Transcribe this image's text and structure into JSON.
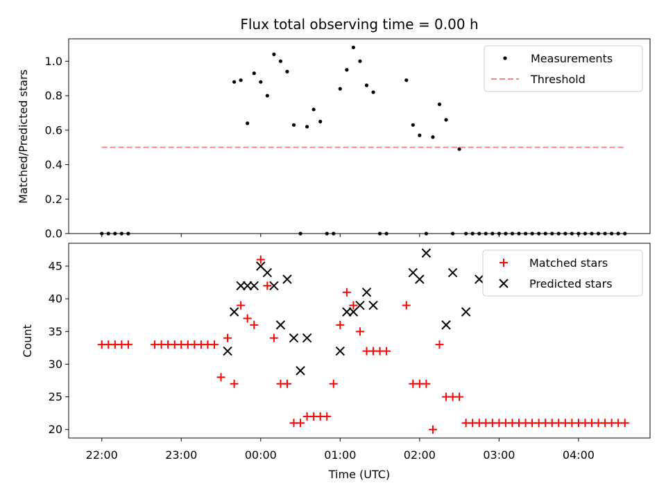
{
  "chart_data": [
    {
      "type": "scatter",
      "title": "Flux total observing time = 0.00 h",
      "xlabel": "",
      "ylabel": "Matched/Predicted stars",
      "xlim": [
        "21:35",
        "04:54"
      ],
      "ylim": [
        0,
        1.13
      ],
      "yticks": [
        0.0,
        0.2,
        0.4,
        0.6,
        0.8,
        1.0
      ],
      "ytick_labels": [
        "0.0",
        "0.2",
        "0.4",
        "0.6",
        "0.8",
        "1.0"
      ],
      "legend_position": "top-right",
      "legend": [
        "Measurements",
        "Threshold"
      ],
      "series": [
        {
          "name": "Measurements",
          "marker": "dot",
          "color": "#000000",
          "x": [
            "22:00",
            "22:05",
            "22:10",
            "22:15",
            "22:20",
            "23:40",
            "23:45",
            "23:50",
            "23:55",
            "00:00",
            "00:05",
            "00:10",
            "00:15",
            "00:20",
            "00:25",
            "00:30",
            "00:35",
            "00:40",
            "00:45",
            "00:50",
            "00:55",
            "01:00",
            "01:05",
            "01:10",
            "01:15",
            "01:20",
            "01:25",
            "01:30",
            "01:35",
            "01:50",
            "01:55",
            "02:00",
            "02:05",
            "02:10",
            "02:15",
            "02:20",
            "02:25",
            "02:30",
            "02:35",
            "02:40",
            "02:45",
            "02:50",
            "02:55",
            "03:00",
            "03:05",
            "03:10",
            "03:15",
            "03:20",
            "03:25",
            "03:30",
            "03:35",
            "03:40",
            "03:45",
            "03:50",
            "03:55",
            "04:00",
            "04:05",
            "04:10",
            "04:15",
            "04:20",
            "04:25",
            "04:30",
            "04:35"
          ],
          "y": [
            0,
            0,
            0,
            0,
            0,
            0.88,
            0.89,
            0.64,
            0.93,
            0.88,
            0.8,
            1.04,
            1.0,
            0.94,
            0.63,
            0.0,
            0.62,
            0.72,
            0.65,
            0.0,
            0.0,
            0.84,
            0.95,
            1.08,
            1.0,
            0.86,
            0.82,
            0.0,
            0.0,
            0.89,
            0.63,
            0.57,
            0.0,
            0.56,
            0.75,
            0.66,
            0.0,
            0.49,
            0.0,
            0.0,
            0.0,
            0.0,
            0.0,
            0.0,
            0.0,
            0.0,
            0.0,
            0.0,
            0.0,
            0.0,
            0.0,
            0.0,
            0.0,
            0.0,
            0.0,
            0.0,
            0.0,
            0.0,
            0.0,
            0.0,
            0.0,
            0.0,
            0.0
          ]
        },
        {
          "name": "Threshold",
          "marker": "dashed-line",
          "color": "#ff8080",
          "x": [
            "22:00",
            "04:35"
          ],
          "y": [
            0.5,
            0.5
          ]
        }
      ]
    },
    {
      "type": "scatter",
      "title": "",
      "xlabel": "Time (UTC)",
      "ylabel": "Count",
      "xlim": [
        "21:35",
        "04:54"
      ],
      "ylim": [
        18.7,
        48.5
      ],
      "yticks": [
        20,
        25,
        30,
        35,
        40,
        45
      ],
      "ytick_labels": [
        "20",
        "25",
        "30",
        "35",
        "40",
        "45"
      ],
      "xticks": [
        "22:00",
        "23:00",
        "00:00",
        "01:00",
        "02:00",
        "03:00",
        "04:00"
      ],
      "xtick_labels": [
        "22:00",
        "23:00",
        "00:00",
        "01:00",
        "02:00",
        "03:00",
        "04:00"
      ],
      "legend_position": "top-right",
      "legend": [
        "Matched stars",
        "Predicted stars"
      ],
      "series": [
        {
          "name": "Matched stars",
          "marker": "plus",
          "color": "#ff0000",
          "x": [
            "22:00",
            "22:05",
            "22:10",
            "22:15",
            "22:20",
            "22:40",
            "22:45",
            "22:50",
            "22:55",
            "23:00",
            "23:05",
            "23:10",
            "23:15",
            "23:20",
            "23:25",
            "23:30",
            "23:35",
            "23:40",
            "23:45",
            "23:50",
            "23:55",
            "00:00",
            "00:05",
            "00:10",
            "00:15",
            "00:20",
            "00:25",
            "00:30",
            "00:35",
            "00:40",
            "00:45",
            "00:50",
            "00:55",
            "01:00",
            "01:05",
            "01:10",
            "01:15",
            "01:20",
            "01:25",
            "01:30",
            "01:35",
            "01:50",
            "01:55",
            "02:00",
            "02:05",
            "02:10",
            "02:15",
            "02:20",
            "02:25",
            "02:30",
            "02:35",
            "02:40",
            "02:45",
            "02:50",
            "02:55",
            "03:00",
            "03:05",
            "03:10",
            "03:15",
            "03:20",
            "03:25",
            "03:30",
            "03:35",
            "03:40",
            "03:45",
            "03:50",
            "03:55",
            "04:00",
            "04:05",
            "04:10",
            "04:15",
            "04:20",
            "04:25",
            "04:30",
            "04:35"
          ],
          "y": [
            33,
            33,
            33,
            33,
            33,
            33,
            33,
            33,
            33,
            33,
            33,
            33,
            33,
            33,
            33,
            28,
            34,
            27,
            39,
            37,
            36,
            46,
            42,
            34,
            27,
            27,
            21,
            21,
            22,
            22,
            22,
            22,
            27,
            36,
            41,
            39,
            35,
            32,
            32,
            32,
            32,
            39,
            27,
            27,
            27,
            20,
            33,
            25,
            25,
            25,
            21,
            21,
            21,
            21,
            21,
            21,
            21,
            21,
            21,
            21,
            21,
            21,
            21,
            21,
            21,
            21,
            21,
            21,
            21,
            21,
            21,
            21,
            21,
            21,
            21
          ]
        },
        {
          "name": "Predicted stars",
          "marker": "x",
          "color": "#000000",
          "x": [
            "23:35",
            "23:40",
            "23:45",
            "23:50",
            "23:55",
            "00:00",
            "00:05",
            "00:10",
            "00:15",
            "00:20",
            "00:25",
            "00:30",
            "00:35",
            "01:00",
            "01:05",
            "01:10",
            "01:15",
            "01:20",
            "01:25",
            "01:55",
            "02:00",
            "02:05",
            "02:20",
            "02:25",
            "02:35",
            "02:45"
          ],
          "y": [
            32,
            38,
            42,
            42,
            42,
            45,
            44,
            42,
            36,
            43,
            34,
            29,
            34,
            32,
            38,
            38,
            39,
            41,
            39,
            44,
            43,
            47,
            36,
            44,
            38,
            43
          ]
        }
      ]
    }
  ]
}
